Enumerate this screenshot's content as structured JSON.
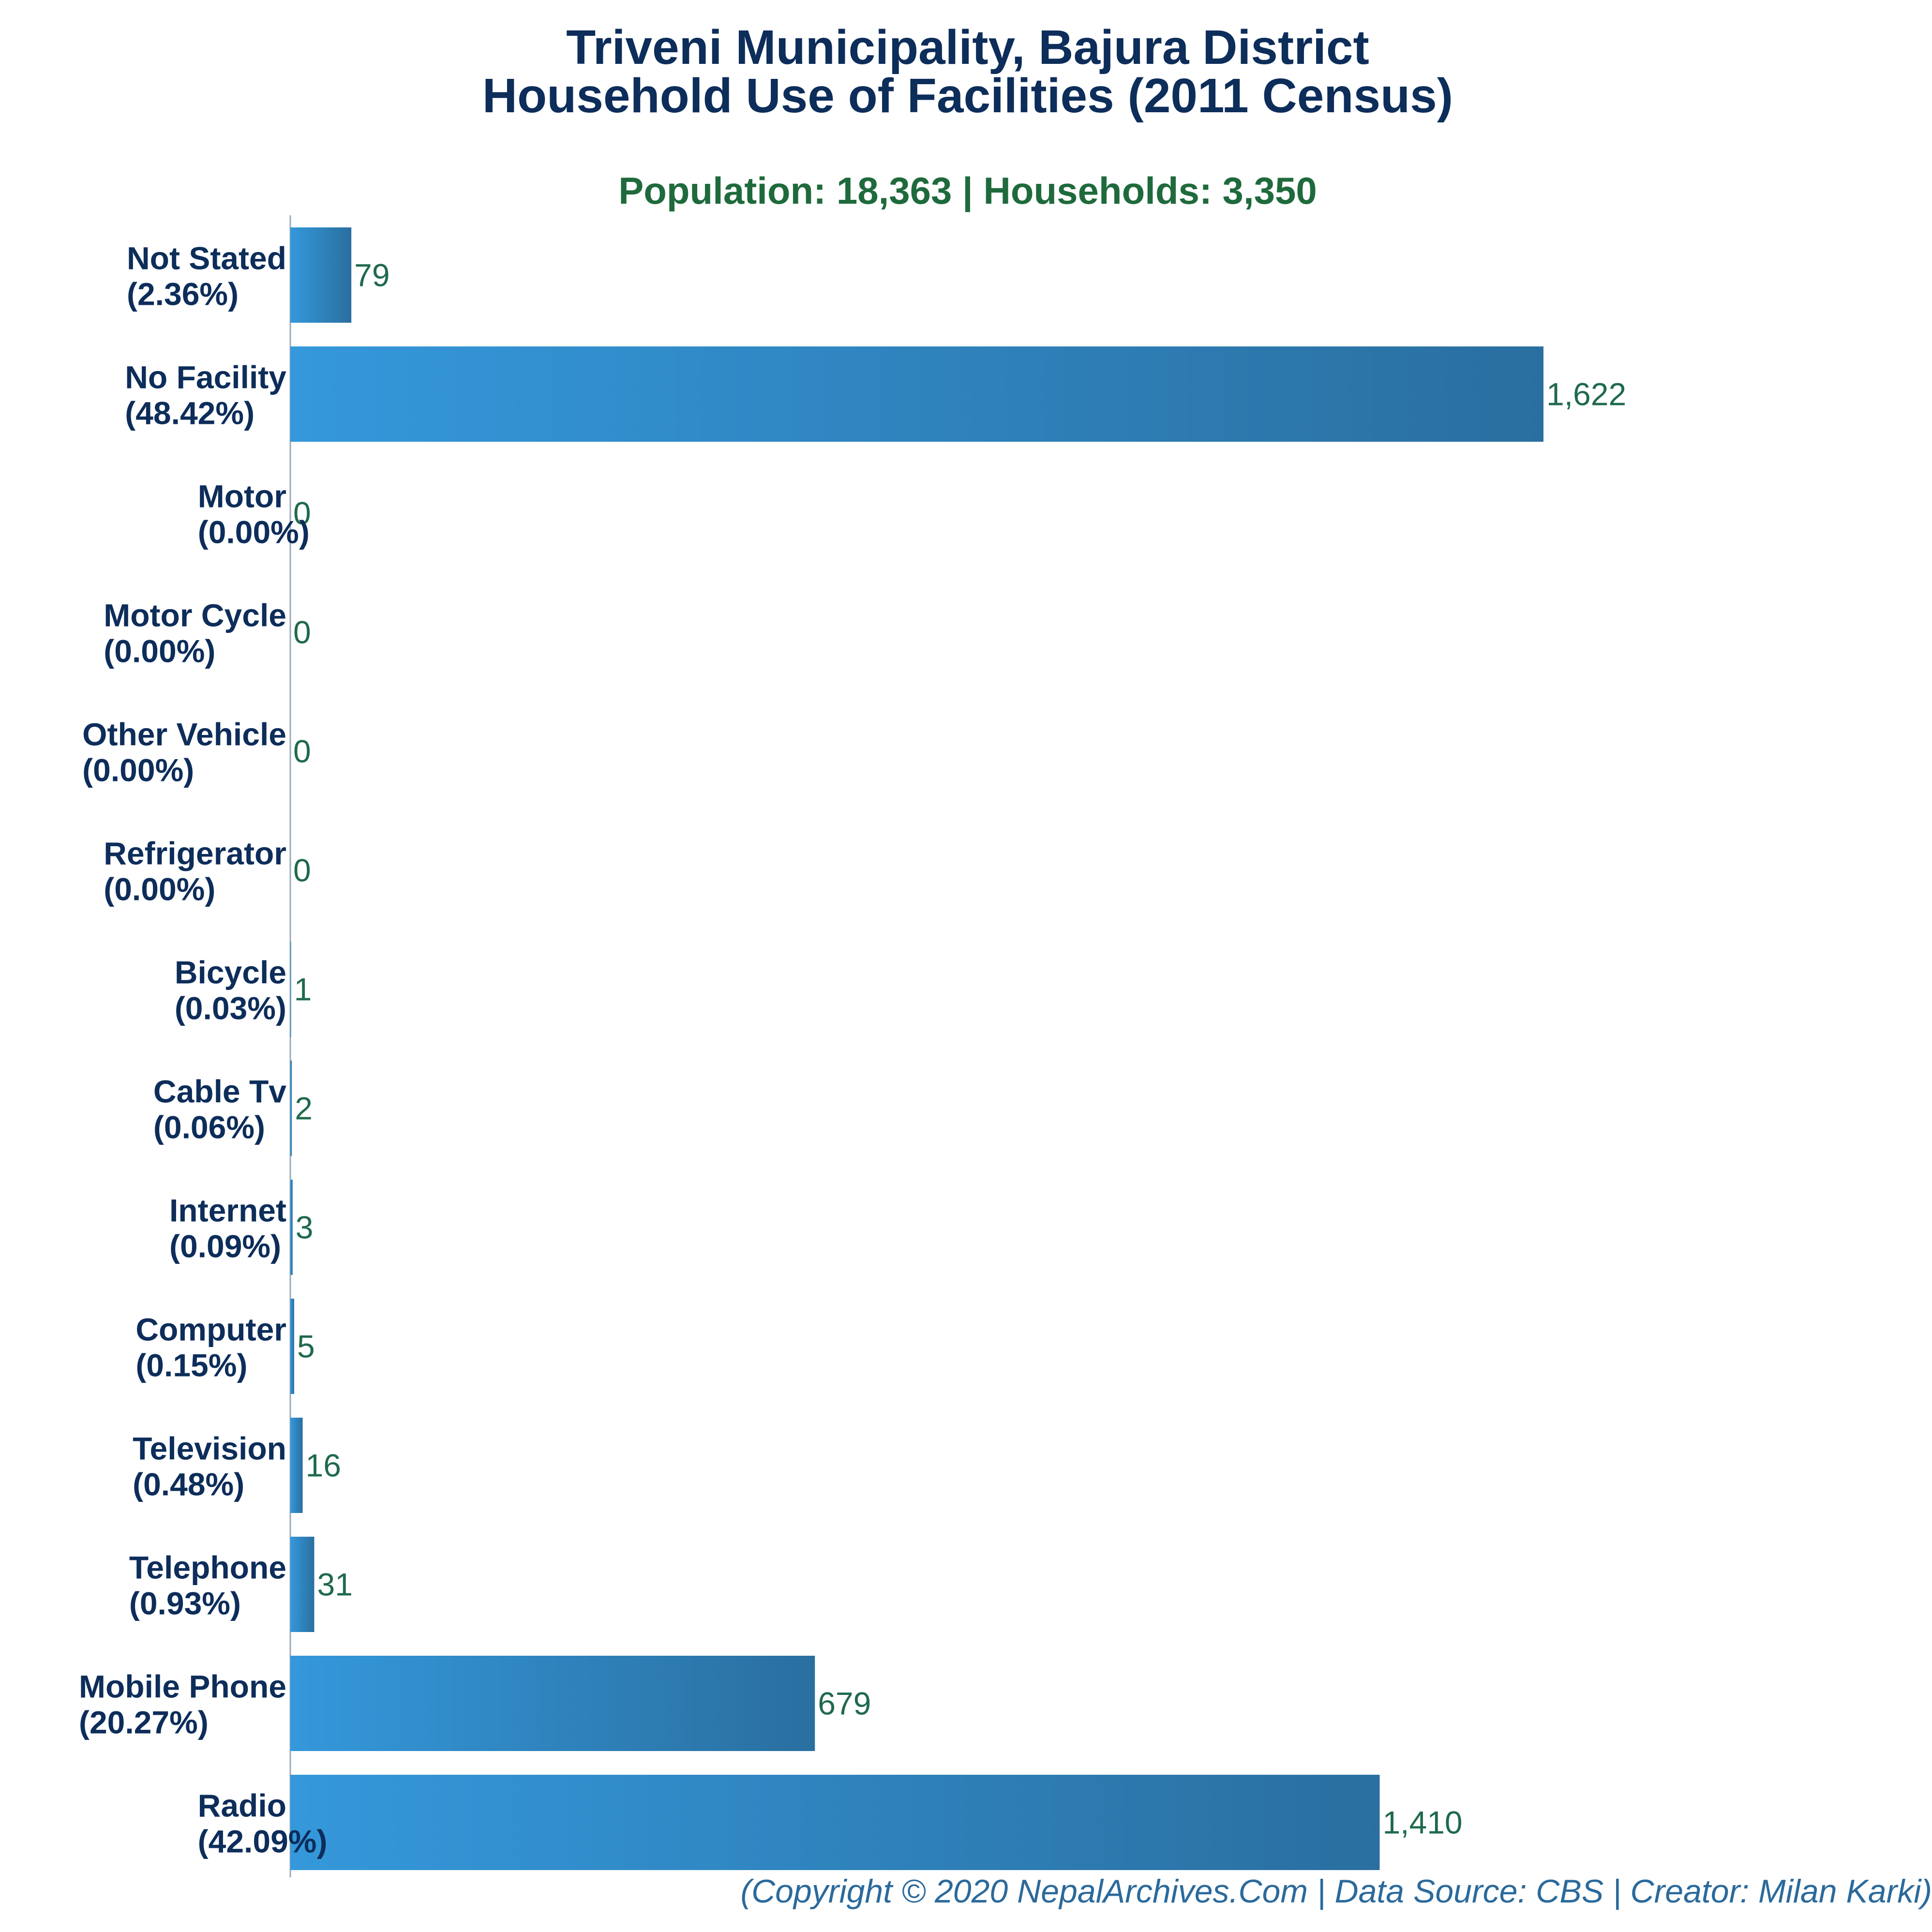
{
  "title_line1": "Triveni Municipality, Bajura District",
  "title_line2": "Household Use of Facilities (2011 Census)",
  "subtitle": "Population: 18,363 | Households: 3,350",
  "footer": "(Copyright © 2020 NepalArchives.Com | Data Source: CBS | Creator: Milan Karki)",
  "colors": {
    "bar_light": "#3498db",
    "bar_dark": "#2a6fa0",
    "title": "#0d2d5a",
    "subtitle": "#1f6a3c",
    "value_label": "#1f6a4c",
    "footer": "#2b6a9c"
  },
  "chart_data": {
    "type": "bar",
    "orientation": "horizontal",
    "categories": [
      "Not Stated",
      "No Facility",
      "Motor",
      "Motor Cycle",
      "Other Vehicle",
      "Refrigerator",
      "Bicycle",
      "Cable Tv",
      "Internet",
      "Computer",
      "Television",
      "Telephone",
      "Mobile Phone",
      "Radio"
    ],
    "percent_labels": [
      "(2.36%)",
      "(48.42%)",
      "(0.00%)",
      "(0.00%)",
      "(0.00%)",
      "(0.00%)",
      "(0.03%)",
      "(0.06%)",
      "(0.09%)",
      "(0.15%)",
      "(0.48%)",
      "(0.93%)",
      "(20.27%)",
      "(42.09%)"
    ],
    "values": [
      79,
      1622,
      0,
      0,
      0,
      0,
      1,
      2,
      3,
      5,
      16,
      31,
      679,
      1410
    ],
    "value_labels": [
      "79",
      "1,622",
      "0",
      "0",
      "0",
      "0",
      "1",
      "2",
      "3",
      "5",
      "16",
      "31",
      "679",
      "1,410"
    ],
    "title": "Triveni Municipality, Bajura District Household Use of Facilities (2011 Census)",
    "xlabel": "",
    "ylabel": "",
    "grid": false,
    "legend": "none"
  }
}
